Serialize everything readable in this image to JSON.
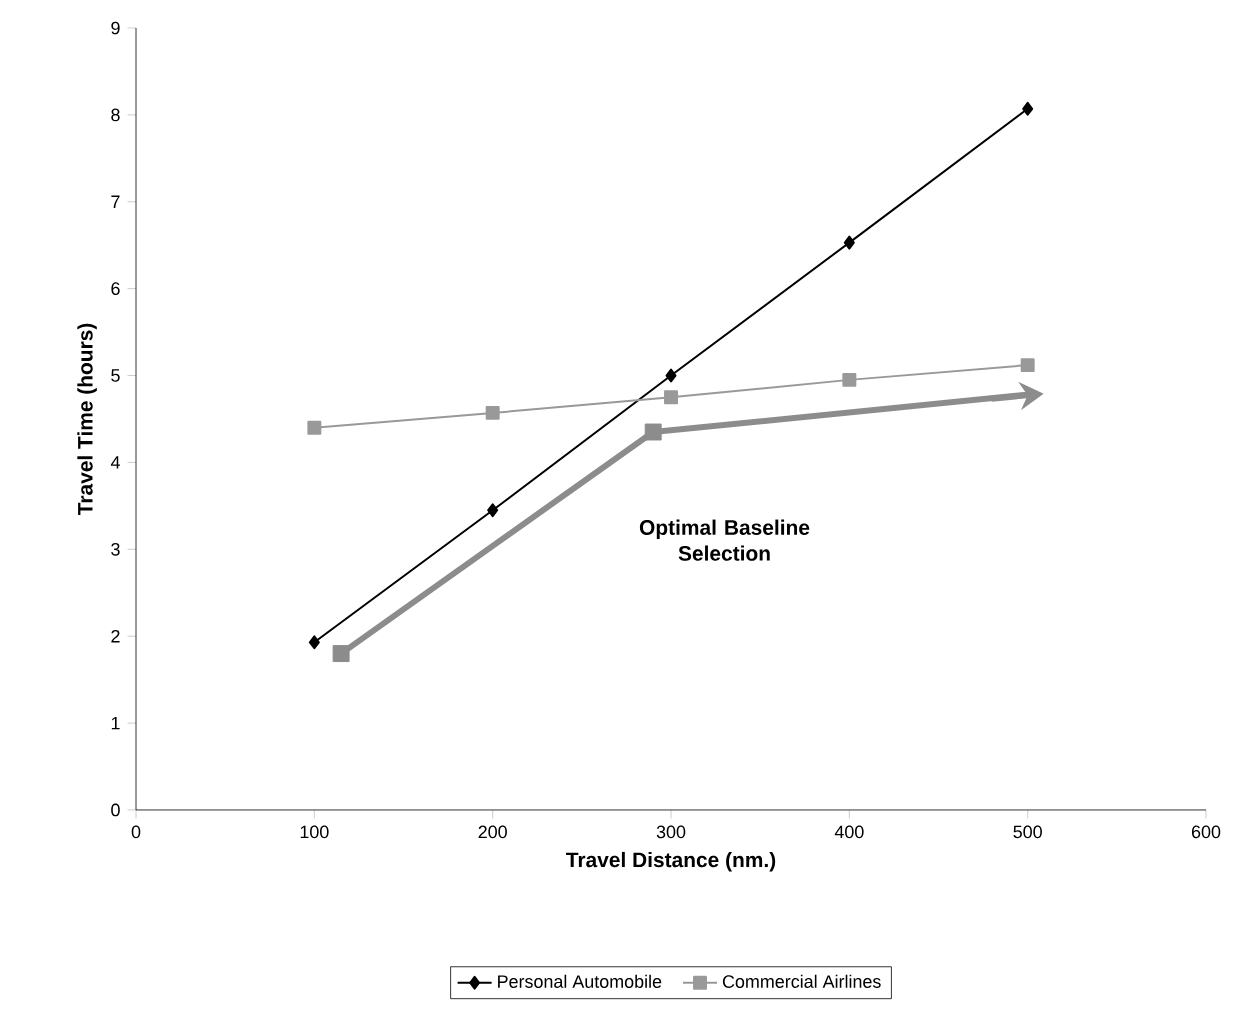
{
  "chart_data": {
    "type": "line",
    "xlabel": "Travel Distance (nm.)",
    "ylabel": "Travel Time (hours)",
    "xlim": [
      0,
      600
    ],
    "xticks": [
      0,
      100,
      200,
      300,
      400,
      500,
      600
    ],
    "ylim": [
      0,
      9
    ],
    "yticks": [
      0,
      1,
      2,
      3,
      4,
      5,
      6,
      7,
      8,
      9
    ],
    "legend": "bottom",
    "grid": false,
    "series": [
      {
        "name": "Personal Automobile",
        "color": "#000000",
        "marker": "diamond",
        "x": [
          100,
          200,
          300,
          400,
          500
        ],
        "values": [
          1.93,
          3.45,
          5.0,
          6.53,
          8.07
        ]
      },
      {
        "name": "Commercial Airlines",
        "color": "#999999",
        "marker": "square",
        "x": [
          100,
          200,
          300,
          400,
          500
        ],
        "values": [
          4.4,
          4.57,
          4.75,
          4.95,
          5.12
        ]
      },
      {
        "color": "#8c8c8c",
        "marker": "square",
        "line_style": "solid",
        "x": [
          115,
          290,
          500
        ],
        "values": [
          1.8,
          4.35,
          4.78
        ]
      }
    ],
    "annotations": [
      "Optimal Baseline Selection"
    ]
  }
}
